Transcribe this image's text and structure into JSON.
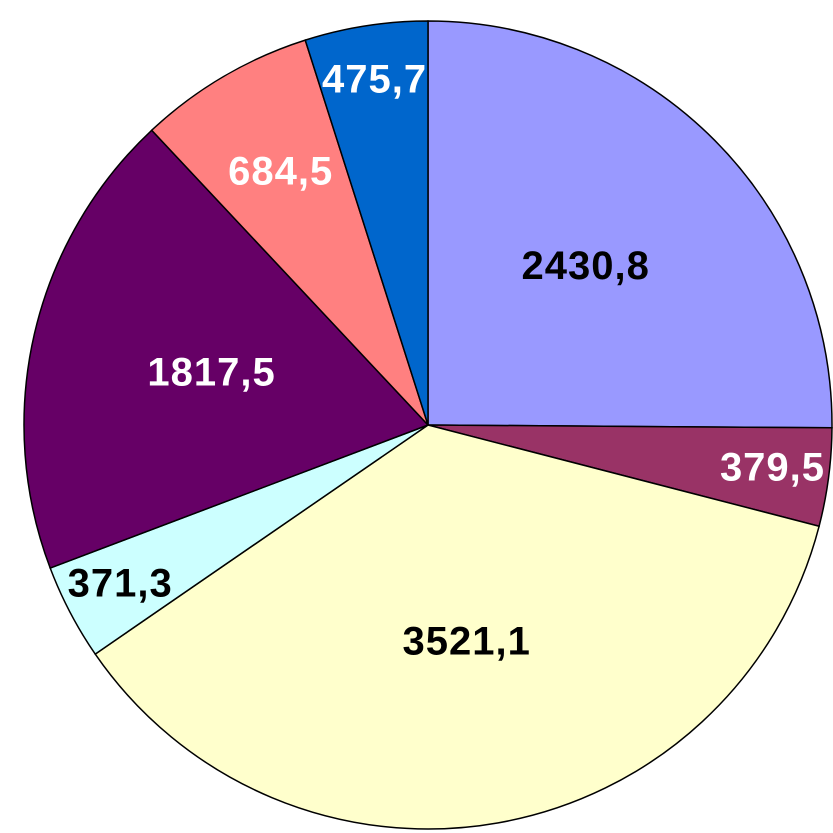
{
  "chart_data": {
    "type": "pie",
    "categories": [
      null,
      null,
      null,
      null,
      null,
      null,
      null
    ],
    "values": [
      2430.8,
      379.5,
      3521.1,
      371.3,
      1817.5,
      684.5,
      475.7
    ],
    "value_labels": [
      "2430,8",
      "379,5",
      "3521,1",
      "371,3",
      "1817,5",
      "684,5",
      "475,7"
    ],
    "colors": [
      "#9999ff",
      "#993366",
      "#ffffcc",
      "#ccffff",
      "#660066",
      "#ff8080",
      "#0066cc"
    ],
    "label_colors": [
      "#000000",
      "#ffffff",
      "#000000",
      "#000000",
      "#ffffff",
      "#ffffff",
      "#ffffff"
    ],
    "start_angle": 0,
    "direction": "clockwise"
  }
}
